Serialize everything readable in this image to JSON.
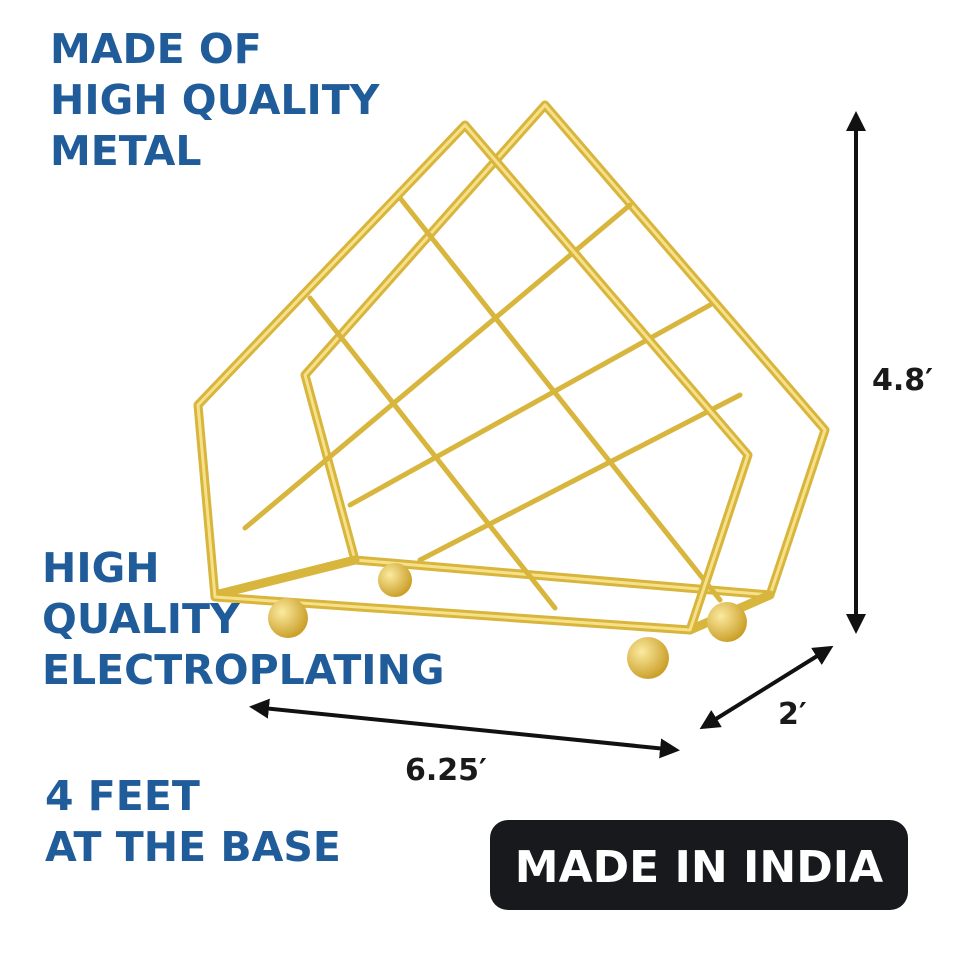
{
  "features": [
    {
      "lines": [
        "MADE OF",
        "HIGH QUALITY",
        "METAL"
      ]
    },
    {
      "lines": [
        "HIGH",
        "QUALITY",
        "ELECTROPLATING"
      ]
    },
    {
      "lines": [
        "4 FEET",
        "AT THE BASE"
      ]
    }
  ],
  "dimensions": {
    "height": "4.8′",
    "width": "6.25′",
    "depth": "2′"
  },
  "badge": "MADE IN INDIA"
}
